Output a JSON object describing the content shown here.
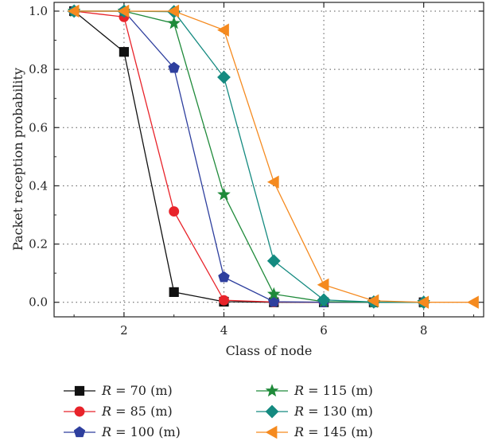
{
  "chart_data": {
    "type": "line",
    "xlabel": "Class of node",
    "ylabel": "Packet reception probability",
    "xlim": [
      0.6,
      9.2
    ],
    "ylim": [
      -0.05,
      1.03
    ],
    "xticks": [
      2,
      4,
      6,
      8
    ],
    "yticks": [
      0.0,
      0.2,
      0.4,
      0.6,
      0.8,
      1.0
    ],
    "xtick_labels": [
      "2",
      "4",
      "6",
      "8"
    ],
    "ytick_labels": [
      "0.0",
      "0.2",
      "0.4",
      "0.6",
      "0.8",
      "1.0"
    ],
    "grid": true,
    "legend_position": "bottom",
    "series": [
      {
        "name": "R = 70 (m)",
        "label_var": "R",
        "label_rest": " = 70 (m)",
        "color": "#111111",
        "marker": "square",
        "x": [
          1,
          2,
          3,
          4,
          5,
          6,
          7,
          8
        ],
        "values": [
          1.0,
          0.86,
          0.035,
          0.002,
          0.0,
          0.0,
          0.0,
          0.0
        ]
      },
      {
        "name": "R = 85 (m)",
        "label_var": "R",
        "label_rest": " = 85 (m)",
        "color": "#e8232a",
        "marker": "circle",
        "x": [
          1,
          2,
          3,
          4,
          5,
          6,
          7,
          8
        ],
        "values": [
          1.0,
          0.98,
          0.312,
          0.007,
          0.001,
          0.0,
          0.0,
          0.0
        ]
      },
      {
        "name": "R = 100 (m)",
        "label_var": "R",
        "label_rest": " = 100 (m)",
        "color": "#2e3f9e",
        "marker": "pentagon",
        "x": [
          1,
          2,
          3,
          4,
          5,
          6,
          7,
          8
        ],
        "values": [
          1.0,
          1.0,
          0.805,
          0.086,
          0.002,
          0.0,
          0.0,
          0.0
        ]
      },
      {
        "name": "R = 115 (m)",
        "label_var": "R",
        "label_rest": " = 115 (m)",
        "color": "#1f8a3a",
        "marker": "star",
        "x": [
          1,
          2,
          3,
          4,
          5,
          6,
          7,
          8
        ],
        "values": [
          1.0,
          1.0,
          0.958,
          0.37,
          0.028,
          0.002,
          0.0,
          0.0
        ]
      },
      {
        "name": "R = 130 (m)",
        "label_var": "R",
        "label_rest": " = 130 (m)",
        "color": "#148a80",
        "marker": "diamond",
        "x": [
          1,
          2,
          3,
          4,
          5,
          6,
          7,
          8
        ],
        "values": [
          1.0,
          1.0,
          0.998,
          0.773,
          0.142,
          0.008,
          0.001,
          0.0
        ]
      },
      {
        "name": "R = 145 (m)",
        "label_var": "R",
        "label_rest": " = 145 (m)",
        "color": "#f58a1f",
        "marker": "triangle-left",
        "x": [
          1,
          2,
          3,
          4,
          5,
          6,
          7,
          8,
          9
        ],
        "values": [
          1.0,
          1.0,
          1.0,
          0.935,
          0.413,
          0.06,
          0.005,
          0.0,
          0.0
        ]
      }
    ]
  }
}
